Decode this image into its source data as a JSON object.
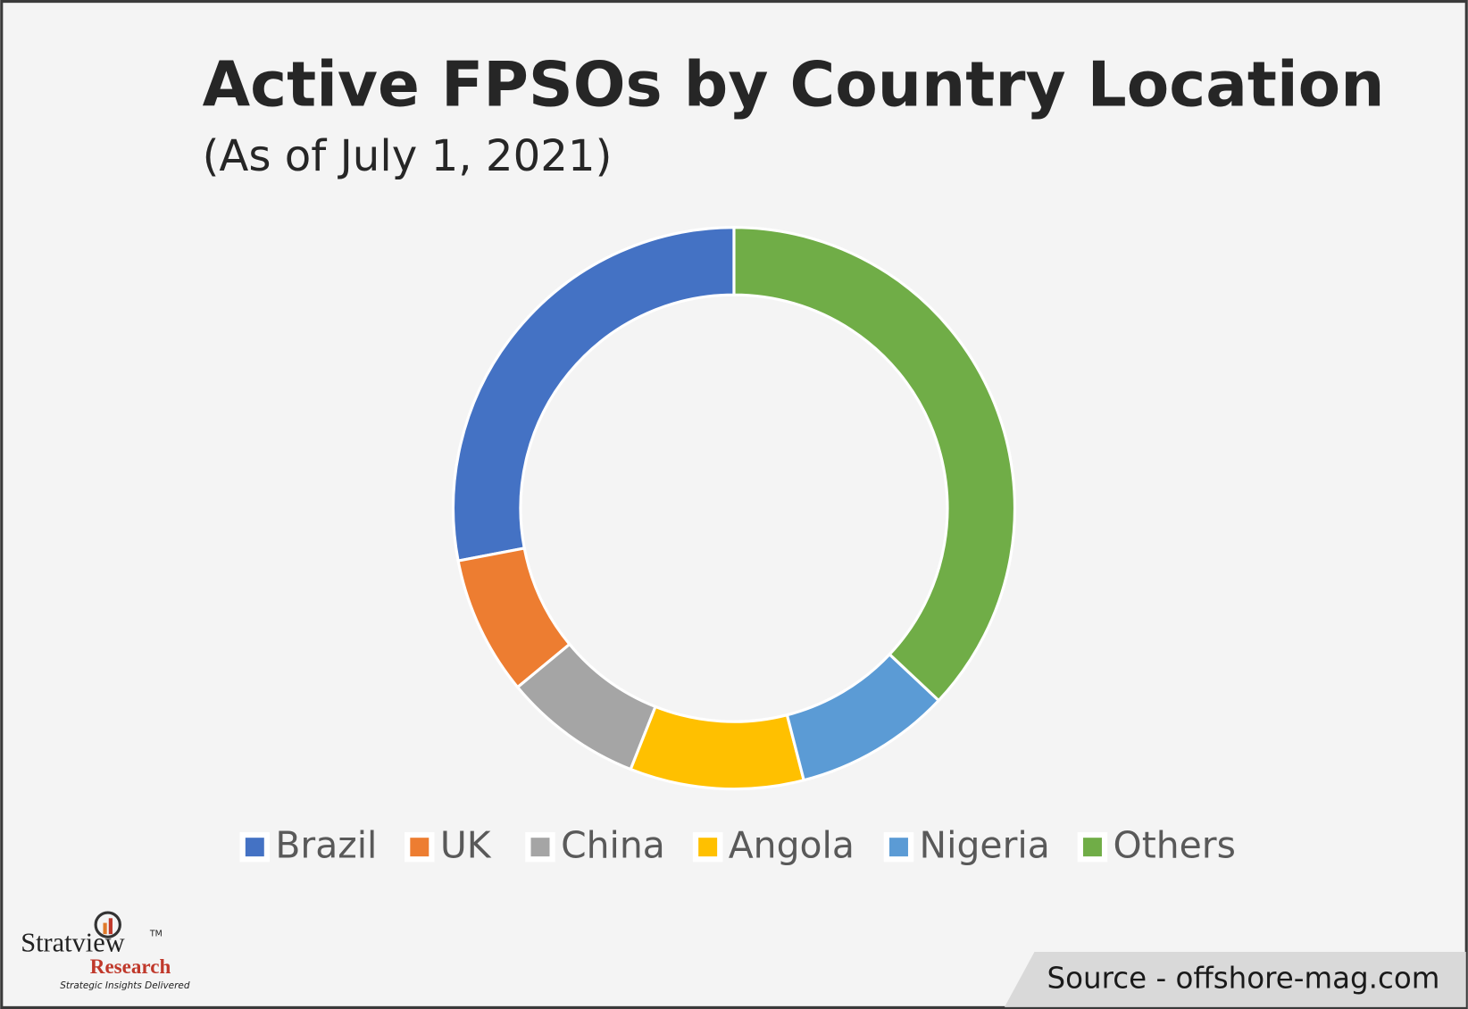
{
  "chart_data": {
    "type": "donut",
    "title": "Active FPSOs by Country Location",
    "subtitle": "(As of July 1, 2021)",
    "categories": [
      "Brazil",
      "UK",
      "China",
      "Angola",
      "Nigeria",
      "Others"
    ],
    "values": [
      28,
      8,
      8,
      10,
      9,
      37
    ],
    "colors": [
      "#4472c4",
      "#ed7d31",
      "#a5a5a5",
      "#ffc000",
      "#5b9bd5",
      "#70ad47"
    ],
    "legend": "bottom"
  },
  "source": "Source - offshore-mag.com",
  "logo": {
    "name": "Stratview",
    "trademark": "TM",
    "division": "Research",
    "tagline": "Strategic Insights Delivered"
  }
}
